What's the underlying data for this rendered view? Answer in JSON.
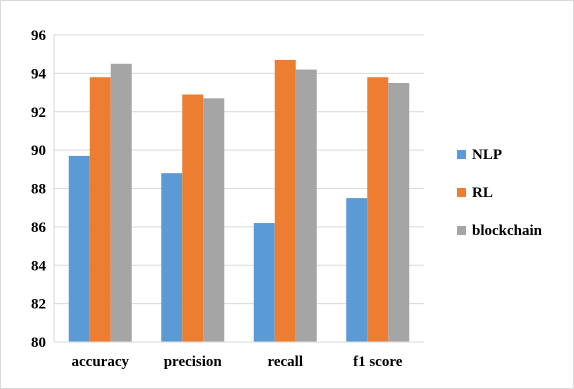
{
  "chart_data": {
    "type": "bar",
    "categories": [
      "accuracy",
      "precision",
      "recall",
      "f1 score"
    ],
    "series": [
      {
        "name": "NLP",
        "values": [
          89.7,
          88.8,
          86.2,
          87.5
        ],
        "color": "#5b9bd5"
      },
      {
        "name": "RL",
        "values": [
          93.8,
          92.9,
          94.7,
          93.8
        ],
        "color": "#ed7d31"
      },
      {
        "name": "blockchain",
        "values": [
          94.5,
          92.7,
          94.2,
          93.5
        ],
        "color": "#a5a5a5"
      }
    ],
    "title": "",
    "xlabel": "",
    "ylabel": "",
    "ylim": [
      80,
      96
    ],
    "yticks": [
      80,
      82,
      84,
      86,
      88,
      90,
      92,
      94,
      96
    ],
    "grid": true,
    "legend_position": "right"
  }
}
